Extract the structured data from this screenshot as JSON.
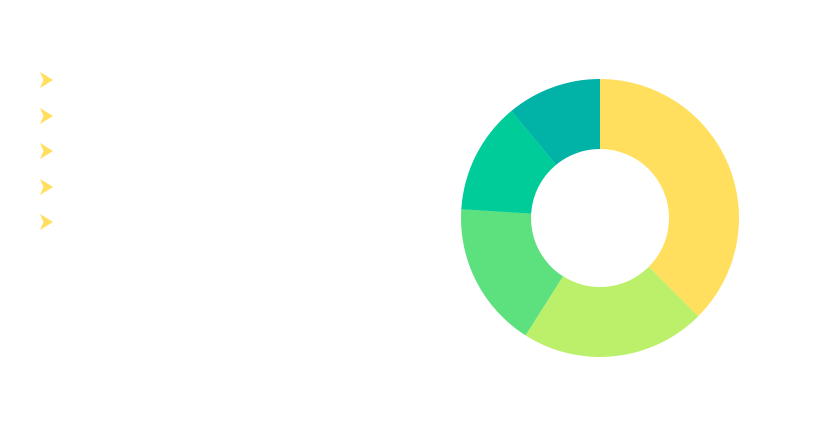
{
  "bullets": {
    "items": [
      {
        "label": ""
      },
      {
        "label": ""
      },
      {
        "label": ""
      },
      {
        "label": ""
      },
      {
        "label": ""
      }
    ],
    "icon": "arrow-bullet-icon",
    "color": "#FFDF5D"
  },
  "chart_data": {
    "type": "pie",
    "donut": true,
    "title": "",
    "categories": [
      "",
      "",
      "",
      "",
      ""
    ],
    "values": [
      37.5,
      21.5,
      17.0,
      13.0,
      11.0
    ],
    "colors": [
      "#FFDF5D",
      "#BCF06A",
      "#5DE07E",
      "#00CC99",
      "#00B3A6"
    ],
    "start": "12 o'clock",
    "direction": "clockwise",
    "legend": "none"
  }
}
